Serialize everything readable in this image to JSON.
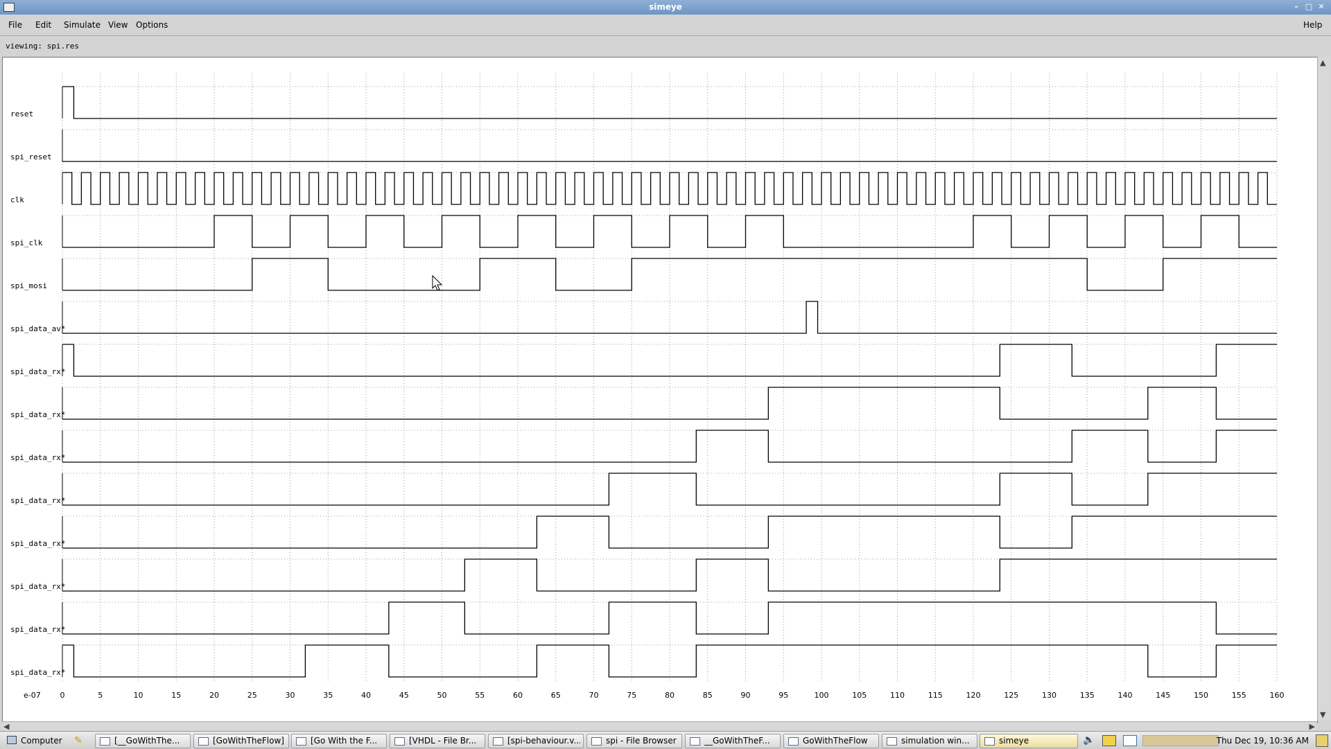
{
  "window": {
    "title": "simeye"
  },
  "menubar": {
    "items": [
      "File",
      "Edit",
      "Simulate",
      "View",
      "Options"
    ],
    "help": "Help"
  },
  "status": {
    "viewing": "viewing: spi.res"
  },
  "axis": {
    "unit_label": "e-07",
    "ticks": [
      "0",
      "5",
      "10",
      "15",
      "20",
      "25",
      "30",
      "35",
      "40",
      "45",
      "50",
      "55",
      "60",
      "65",
      "70",
      "75",
      "80",
      "85",
      "90",
      "95",
      "100",
      "105",
      "110",
      "115",
      "120",
      "125",
      "130",
      "135",
      "140",
      "145",
      "150",
      "155",
      "160"
    ]
  },
  "signals": [
    {
      "name": "reset",
      "initial": 1,
      "transitions": [
        1.5
      ]
    },
    {
      "name": "spi_reset",
      "initial": 0,
      "transitions": []
    },
    {
      "name": "clk",
      "initial": 1,
      "clock_period": 2.5
    },
    {
      "name": "spi_clk",
      "initial": 0,
      "transitions": [
        20,
        25,
        30,
        35,
        40,
        45,
        50,
        55,
        60,
        65,
        70,
        75,
        80,
        85,
        90,
        95,
        120,
        125,
        130,
        135,
        140,
        145,
        150,
        155
      ]
    },
    {
      "name": "spi_mosi",
      "initial": 0,
      "transitions": [
        25,
        35,
        55,
        65,
        75,
        135,
        145
      ]
    },
    {
      "name": "spi_data_av*",
      "initial": 0,
      "transitions": [
        98,
        99.5
      ]
    },
    {
      "name": "spi_data_rx*",
      "initial": 1,
      "transitions": [
        1.5,
        123.5,
        133,
        152
      ]
    },
    {
      "name": "spi_data_rx*",
      "initial": 0,
      "transitions": [
        93,
        123.5,
        143,
        152
      ]
    },
    {
      "name": "spi_data_rx*",
      "initial": 0,
      "transitions": [
        83.5,
        93,
        133,
        143,
        152
      ]
    },
    {
      "name": "spi_data_rx*",
      "initial": 0,
      "transitions": [
        72,
        83.5,
        123.5,
        133,
        143
      ]
    },
    {
      "name": "spi_data_rx*",
      "initial": 0,
      "transitions": [
        62.5,
        72,
        93,
        123.5,
        133
      ]
    },
    {
      "name": "spi_data_rx*",
      "initial": 0,
      "transitions": [
        53,
        62.5,
        83.5,
        93,
        123.5
      ]
    },
    {
      "name": "spi_data_rx*",
      "initial": 0,
      "transitions": [
        43,
        53,
        72,
        83.5,
        93,
        152
      ]
    },
    {
      "name": "spi_data_rx*",
      "initial": 1,
      "transitions": [
        1.5,
        32,
        43,
        62.5,
        72,
        83.5,
        143,
        152
      ]
    }
  ],
  "taskbar": {
    "start": "Computer",
    "items": [
      "[__GoWithThe...",
      "[GoWithTheFlow]",
      "[Go With the F...",
      "[VHDL - File Br...",
      "[spi-behaviour.v...",
      "spi - File Browser",
      "__GoWithTheF...",
      "GoWithTheFlow",
      "simulation win...",
      "simeye"
    ],
    "clock": "Thu Dec 19, 10:36 AM"
  }
}
